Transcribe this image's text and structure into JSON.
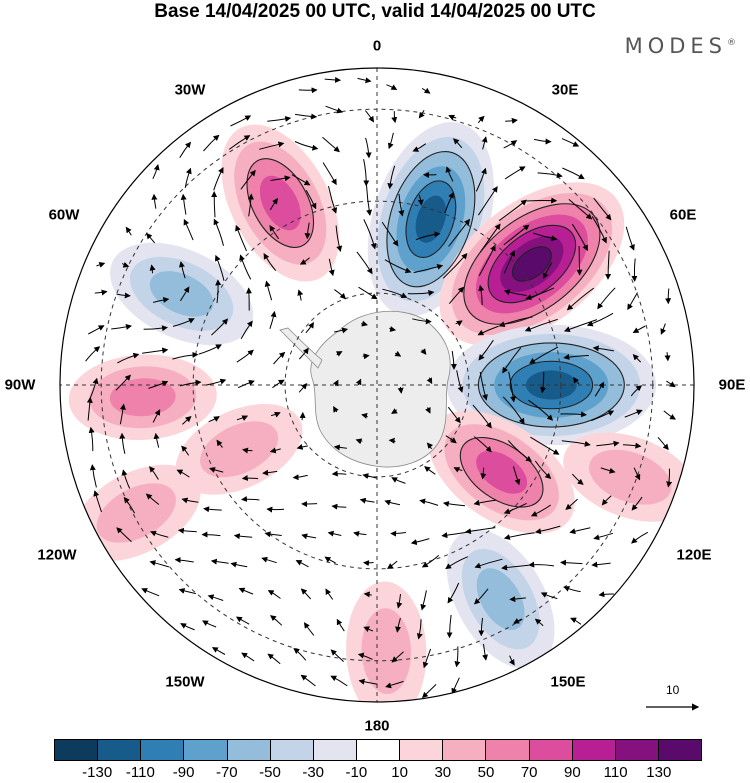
{
  "title": "Base 14/04/2025 00 UTC, valid 14/04/2025 00 UTC",
  "brand": "MODES",
  "brand_mark": "®",
  "longitude_labels": {
    "lon_0": "0",
    "lon_30e": "30E",
    "lon_60e": "60E",
    "lon_90e": "90E",
    "lon_120e": "120E",
    "lon_150e": "150E",
    "lon_180": "180",
    "lon_150w": "150W",
    "lon_120w": "120W",
    "lon_90w": "90W",
    "lon_60w": "60W",
    "lon_30w": "30W"
  },
  "reference_vector": {
    "label": "10",
    "magnitude": 10
  },
  "colorbar": {
    "colors": [
      "#0d3b5e",
      "#175b8b",
      "#2f7fb5",
      "#5ea1cc",
      "#93bddb",
      "#c4d4e8",
      "#e4e4f0",
      "#ffffff",
      "#fbd5d9",
      "#f5afc0",
      "#ef82aa",
      "#dc4d9e",
      "#b81f94",
      "#85117f",
      "#5a0a6b"
    ],
    "ticks": [
      "-130",
      "-110",
      "-90",
      "-70",
      "-50",
      "-30",
      "-10",
      "10",
      "30",
      "50",
      "70",
      "90",
      "110",
      "130"
    ]
  },
  "anomaly_centers": [
    {
      "lon": 18,
      "colat": 0.55,
      "value": -115
    },
    {
      "lon": 52,
      "colat": 0.62,
      "value": 130
    },
    {
      "lon": 90,
      "colat": 0.55,
      "value": -125
    },
    {
      "lon": 125,
      "colat": 0.48,
      "value": 75
    },
    {
      "lon": 150,
      "colat": 0.78,
      "value": -60
    },
    {
      "lon": 110,
      "colat": 0.85,
      "value": 45
    },
    {
      "lon": 178,
      "colat": 0.84,
      "value": 45
    },
    {
      "lon": -28,
      "colat": 0.65,
      "value": 80
    },
    {
      "lon": -65,
      "colat": 0.68,
      "value": -60
    },
    {
      "lon": -93,
      "colat": 0.74,
      "value": 55
    },
    {
      "lon": -118,
      "colat": 0.86,
      "value": 45
    },
    {
      "lon": -115,
      "colat": 0.48,
      "value": 40
    }
  ]
}
